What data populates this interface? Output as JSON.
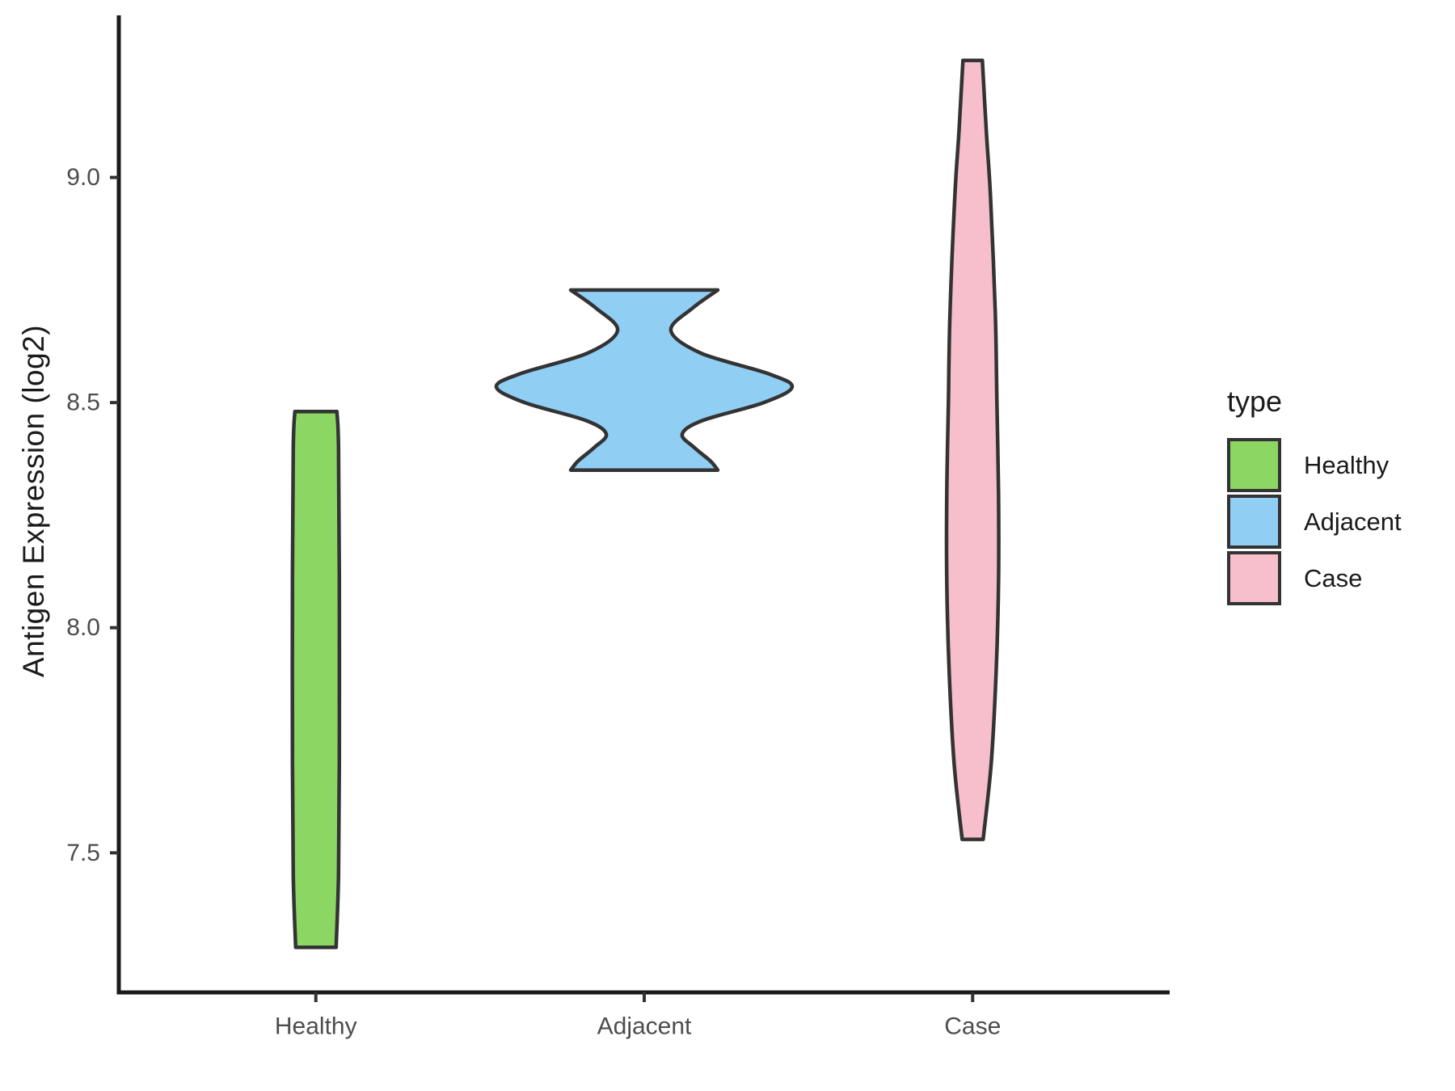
{
  "chart_data": {
    "type": "violin",
    "title": "",
    "xlabel": "",
    "ylabel": "Antigen Expression (log2)",
    "categories": [
      "Healthy",
      "Adjacent",
      "Case"
    ],
    "y_ticks": [
      {
        "label": "7.5",
        "value": 7.5
      },
      {
        "label": "8.0",
        "value": 8.0
      },
      {
        "label": "8.5",
        "value": 8.5
      },
      {
        "label": "9.0",
        "value": 9.0
      }
    ],
    "ylim": [
      7.19,
      9.36
    ],
    "grid": "off",
    "legend_position": "right",
    "legend": {
      "title": "type",
      "entries": [
        {
          "label": "Healthy",
          "color": "#8CD664"
        },
        {
          "label": "Adjacent",
          "color": "#90CEF4"
        },
        {
          "label": "Case",
          "color": "#F6BFCB"
        }
      ]
    },
    "violins": [
      {
        "name": "Healthy",
        "color": "#8CD664",
        "value_range": [
          7.29,
          8.48
        ],
        "profile": [
          [
            8.48,
            26
          ],
          [
            8.4,
            28
          ],
          [
            8.1,
            29
          ],
          [
            7.7,
            29
          ],
          [
            7.45,
            28
          ],
          [
            7.29,
            25
          ]
        ]
      },
      {
        "name": "Adjacent",
        "color": "#90CEF4",
        "value_range": [
          8.35,
          8.75
        ],
        "profile": [
          [
            8.75,
            91
          ],
          [
            8.71,
            60
          ],
          [
            8.66,
            33
          ],
          [
            8.61,
            70
          ],
          [
            8.565,
            152
          ],
          [
            8.535,
            183
          ],
          [
            8.5,
            148
          ],
          [
            8.46,
            72
          ],
          [
            8.43,
            47
          ],
          [
            8.4,
            62
          ],
          [
            8.37,
            82
          ],
          [
            8.35,
            91
          ]
        ]
      },
      {
        "name": "Case",
        "color": "#F6BFCB",
        "value_range": [
          7.53,
          9.26
        ],
        "profile": [
          [
            9.26,
            12
          ],
          [
            9.1,
            17
          ],
          [
            8.96,
            22
          ],
          [
            8.7,
            28
          ],
          [
            8.5,
            30
          ],
          [
            8.3,
            32
          ],
          [
            8.1,
            32
          ],
          [
            7.9,
            29
          ],
          [
            7.7,
            23
          ],
          [
            7.53,
            13
          ]
        ]
      }
    ],
    "styles": {
      "outline_color": "#333333",
      "axis_line_color": "#1a1a1a",
      "tick_color": "#333333",
      "tick_label_color": "#4d4d4d",
      "background": "#ffffff"
    }
  }
}
